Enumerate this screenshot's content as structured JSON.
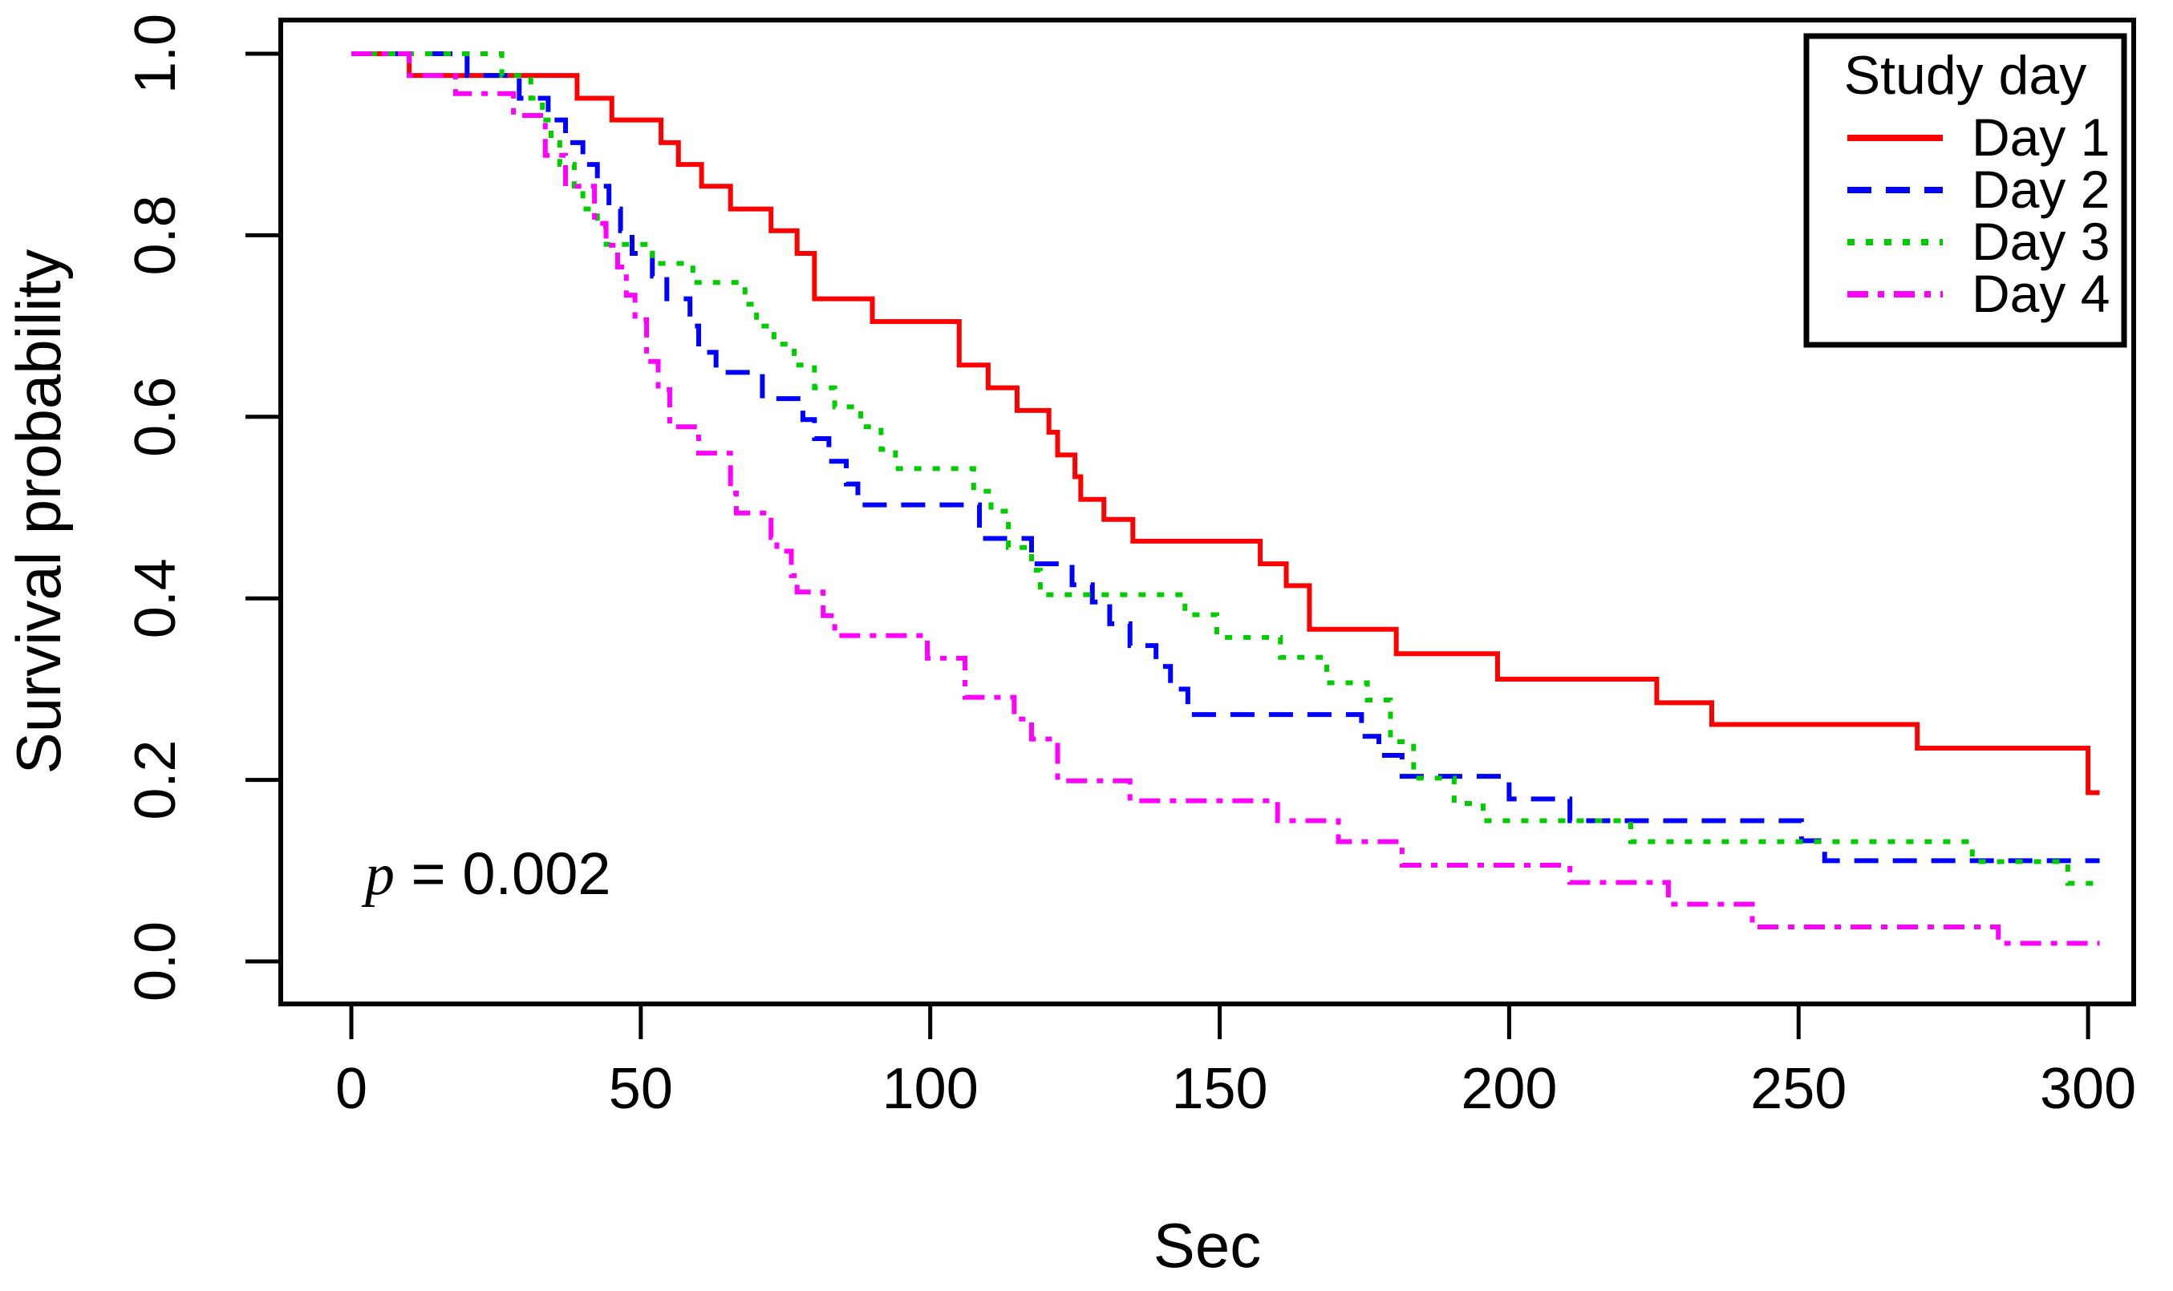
{
  "chart_data": {
    "type": "line",
    "subtype": "kaplan-meier-step-curves",
    "title": "",
    "xlabel": "Sec",
    "ylabel": "Survival probability",
    "xlim": [
      0,
      300
    ],
    "ylim": [
      0.0,
      1.0
    ],
    "x_ticks": [
      0,
      50,
      100,
      150,
      200,
      250,
      300
    ],
    "y_ticks": [
      "0.0",
      "0.2",
      "0.4",
      "0.6",
      "0.8",
      "1.0"
    ],
    "grid": false,
    "t_end": 302,
    "annotation": {
      "prefix": "p",
      "rest": " = 0.002"
    },
    "legend": {
      "title": "Study day",
      "position": "top-right"
    },
    "series": [
      {
        "label": "Day 1",
        "color": "#ff0000",
        "linestyle": "solid",
        "steps": [
          [
            0,
            1
          ],
          [
            10,
            0.976
          ],
          [
            39,
            0.951
          ],
          [
            45,
            0.927
          ],
          [
            53.5,
            0.902
          ],
          [
            56.5,
            0.878
          ],
          [
            60.5,
            0.854
          ],
          [
            65.5,
            0.829
          ],
          [
            72.5,
            0.805
          ],
          [
            77,
            0.78
          ],
          [
            80,
            0.73
          ],
          [
            90,
            0.705
          ],
          [
            105,
            0.657
          ],
          [
            110,
            0.632
          ],
          [
            115,
            0.607
          ],
          [
            120.5,
            0.583
          ],
          [
            122,
            0.558
          ],
          [
            125,
            0.534
          ],
          [
            126,
            0.509
          ],
          [
            130,
            0.487
          ],
          [
            135,
            0.463
          ],
          [
            157,
            0.438
          ],
          [
            161.5,
            0.414
          ],
          [
            165.5,
            0.366
          ],
          [
            180.5,
            0.339
          ],
          [
            198,
            0.311
          ],
          [
            225.5,
            0.285
          ],
          [
            235,
            0.261
          ],
          [
            270.5,
            0.235
          ],
          [
            300,
            0.186
          ]
        ]
      },
      {
        "label": "Day 2",
        "color": "#0000ff",
        "linestyle": "dashed",
        "steps": [
          [
            0,
            1
          ],
          [
            20,
            0.976
          ],
          [
            29,
            0.951
          ],
          [
            34,
            0.927
          ],
          [
            37,
            0.902
          ],
          [
            40,
            0.878
          ],
          [
            42.5,
            0.854
          ],
          [
            44.5,
            0.829
          ],
          [
            46.5,
            0.805
          ],
          [
            48.5,
            0.78
          ],
          [
            52,
            0.755
          ],
          [
            54.5,
            0.73
          ],
          [
            58.5,
            0.7
          ],
          [
            60,
            0.671
          ],
          [
            63,
            0.649
          ],
          [
            71,
            0.62
          ],
          [
            78,
            0.597
          ],
          [
            80,
            0.576
          ],
          [
            82.5,
            0.551
          ],
          [
            85.5,
            0.526
          ],
          [
            87.5,
            0.503
          ],
          [
            108.5,
            0.466
          ],
          [
            117.5,
            0.438
          ],
          [
            124.5,
            0.415
          ],
          [
            128,
            0.396
          ],
          [
            131,
            0.372
          ],
          [
            134.5,
            0.348
          ],
          [
            139,
            0.325
          ],
          [
            141.5,
            0.3
          ],
          [
            144.5,
            0.272
          ],
          [
            174.5,
            0.248
          ],
          [
            177.5,
            0.227
          ],
          [
            181.5,
            0.204
          ],
          [
            200,
            0.179
          ],
          [
            210.5,
            0.155
          ],
          [
            250.5,
            0.133
          ],
          [
            254.5,
            0.111
          ]
        ]
      },
      {
        "label": "Day 3",
        "color": "#00cc00",
        "linestyle": "dotted",
        "steps": [
          [
            0,
            1
          ],
          [
            26,
            0.976
          ],
          [
            31,
            0.951
          ],
          [
            33,
            0.927
          ],
          [
            34.5,
            0.902
          ],
          [
            36,
            0.878
          ],
          [
            38.5,
            0.854
          ],
          [
            40,
            0.829
          ],
          [
            42.5,
            0.81
          ],
          [
            44,
            0.79
          ],
          [
            52,
            0.769
          ],
          [
            59,
            0.748
          ],
          [
            68,
            0.724
          ],
          [
            70,
            0.7
          ],
          [
            73,
            0.68
          ],
          [
            76.5,
            0.657
          ],
          [
            80,
            0.632
          ],
          [
            83.5,
            0.611
          ],
          [
            88,
            0.589
          ],
          [
            91.5,
            0.564
          ],
          [
            94,
            0.543
          ],
          [
            107.5,
            0.518
          ],
          [
            110.5,
            0.496
          ],
          [
            113.5,
            0.456
          ],
          [
            117.5,
            0.431
          ],
          [
            119,
            0.404
          ],
          [
            144,
            0.382
          ],
          [
            149.5,
            0.357
          ],
          [
            160.5,
            0.335
          ],
          [
            168.5,
            0.307
          ],
          [
            175.5,
            0.288
          ],
          [
            179.5,
            0.242
          ],
          [
            183.5,
            0.202
          ],
          [
            190.5,
            0.174
          ],
          [
            195.5,
            0.155
          ],
          [
            221,
            0.132
          ],
          [
            280,
            0.11
          ],
          [
            296.5,
            0.086
          ]
        ]
      },
      {
        "label": "Day 4",
        "color": "#ff00ff",
        "linestyle": "dashdot",
        "steps": [
          [
            0,
            1
          ],
          [
            10,
            0.976
          ],
          [
            18,
            0.956
          ],
          [
            28,
            0.932
          ],
          [
            33.5,
            0.888
          ],
          [
            37,
            0.854
          ],
          [
            42,
            0.813
          ],
          [
            44,
            0.789
          ],
          [
            46,
            0.765
          ],
          [
            47.5,
            0.734
          ],
          [
            49,
            0.707
          ],
          [
            51,
            0.661
          ],
          [
            53,
            0.63
          ],
          [
            55,
            0.589
          ],
          [
            60,
            0.56
          ],
          [
            65.5,
            0.516
          ],
          [
            66.5,
            0.494
          ],
          [
            72.5,
            0.467
          ],
          [
            73.5,
            0.452
          ],
          [
            76,
            0.425
          ],
          [
            77,
            0.407
          ],
          [
            81.5,
            0.381
          ],
          [
            83.5,
            0.359
          ],
          [
            99.5,
            0.334
          ],
          [
            106,
            0.291
          ],
          [
            114.5,
            0.267
          ],
          [
            117.5,
            0.245
          ],
          [
            122,
            0.199
          ],
          [
            134.5,
            0.177
          ],
          [
            160,
            0.155
          ],
          [
            170.5,
            0.132
          ],
          [
            181.5,
            0.106
          ],
          [
            210.5,
            0.087
          ],
          [
            227.5,
            0.063
          ],
          [
            242,
            0.038
          ],
          [
            284.5,
            0.02
          ]
        ]
      }
    ]
  }
}
